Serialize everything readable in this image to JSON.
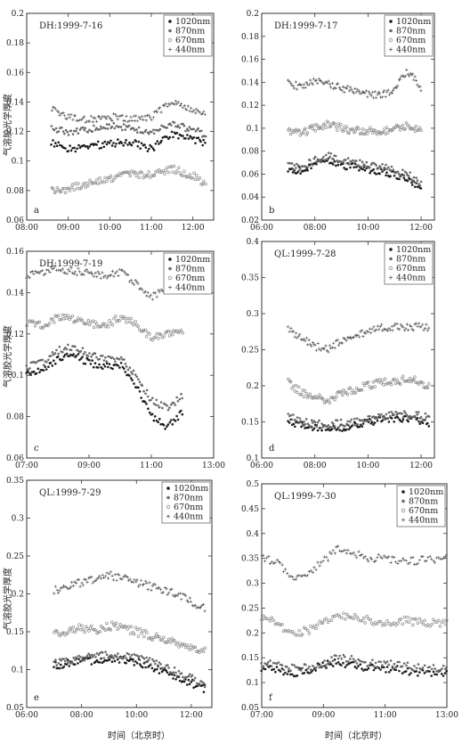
{
  "figure": {
    "ylabel": "气溶胶光学厚度",
    "xlabel": "时间（北京时）"
  },
  "chart_data": [
    {
      "type": "scatter",
      "label": "a",
      "title": "DH:1999-7-16",
      "xlim": [
        8.0,
        12.5
      ],
      "ylim": [
        0.06,
        0.2
      ],
      "xticks": [
        "08:00",
        "09:00",
        "10:00",
        "11:00",
        "12:00"
      ],
      "xtick_values": [
        8,
        9,
        10,
        11,
        12
      ],
      "yticks": [
        "0.06",
        "0.08",
        "0.1",
        "0.12",
        "0.14",
        "0.16",
        "0.18",
        "0.2"
      ],
      "ytick_values": [
        0.06,
        0.08,
        0.1,
        0.12,
        0.14,
        0.16,
        0.18,
        0.2
      ],
      "legend": [
        "1020nm",
        "870nm",
        "670nm",
        "440nm"
      ],
      "x_hours": [
        8.6,
        9.0,
        9.5,
        10.0,
        10.5,
        11.0,
        11.5,
        12.0,
        12.3
      ],
      "series": [
        {
          "name": "1020nm",
          "values": [
            0.112,
            0.108,
            0.11,
            0.112,
            0.113,
            0.108,
            0.118,
            0.115,
            0.112
          ]
        },
        {
          "name": "870nm",
          "values": [
            0.122,
            0.12,
            0.121,
            0.124,
            0.122,
            0.12,
            0.125,
            0.121,
            0.118
          ]
        },
        {
          "name": "670nm",
          "values": [
            0.08,
            0.081,
            0.085,
            0.088,
            0.092,
            0.09,
            0.095,
            0.09,
            0.085
          ]
        },
        {
          "name": "440nm",
          "values": [
            0.135,
            0.13,
            0.128,
            0.13,
            0.128,
            0.13,
            0.14,
            0.135,
            0.132
          ]
        }
      ]
    },
    {
      "type": "scatter",
      "label": "b",
      "title": "DH:1999-7-17",
      "xlim": [
        6.0,
        12.5
      ],
      "ylim": [
        0.02,
        0.2
      ],
      "xticks": [
        "06:00",
        "08:00",
        "10:00",
        "12:00"
      ],
      "xtick_values": [
        6,
        8,
        10,
        12
      ],
      "yticks": [
        "0.02",
        "0.04",
        "0.06",
        "0.08",
        "0.1",
        "0.12",
        "0.14",
        "0.16",
        "0.18",
        "0.2"
      ],
      "ytick_values": [
        0.02,
        0.04,
        0.06,
        0.08,
        0.1,
        0.12,
        0.14,
        0.16,
        0.18,
        0.2
      ],
      "legend": [
        "1020nm",
        "870nm",
        "670nm",
        "440nm"
      ],
      "x_hours": [
        7.0,
        7.5,
        8.0,
        8.5,
        9.0,
        9.5,
        10.0,
        10.5,
        11.0,
        11.5,
        12.0
      ],
      "series": [
        {
          "name": "1020nm",
          "values": [
            0.065,
            0.063,
            0.068,
            0.072,
            0.068,
            0.066,
            0.064,
            0.062,
            0.06,
            0.056,
            0.048
          ]
        },
        {
          "name": "870nm",
          "values": [
            0.068,
            0.066,
            0.072,
            0.076,
            0.072,
            0.07,
            0.068,
            0.066,
            0.064,
            0.06,
            0.052
          ]
        },
        {
          "name": "670nm",
          "values": [
            0.098,
            0.096,
            0.1,
            0.104,
            0.1,
            0.098,
            0.098,
            0.096,
            0.1,
            0.102,
            0.098
          ]
        },
        {
          "name": "440nm",
          "values": [
            0.14,
            0.135,
            0.142,
            0.138,
            0.135,
            0.132,
            0.13,
            0.128,
            0.135,
            0.15,
            0.135
          ]
        }
      ]
    },
    {
      "type": "scatter",
      "label": "c",
      "title": "DH:1999-7-19",
      "xlim": [
        7.0,
        13.0
      ],
      "ylim": [
        0.06,
        0.16
      ],
      "xticks": [
        "07:00",
        "09:00",
        "11:00",
        "13:00"
      ],
      "xtick_values": [
        7,
        9,
        11,
        13
      ],
      "yticks": [
        "0.06",
        "0.08",
        "0.1",
        "0.12",
        "0.14",
        "0.16"
      ],
      "ytick_values": [
        0.06,
        0.08,
        0.1,
        0.12,
        0.14,
        0.16
      ],
      "legend": [
        "1020nm",
        "870nm",
        "670nm",
        "440nm"
      ],
      "x_hours": [
        7.0,
        7.5,
        8.0,
        8.5,
        9.0,
        9.5,
        10.0,
        10.5,
        11.0,
        11.5,
        12.0
      ],
      "series": [
        {
          "name": "1020nm",
          "values": [
            0.1,
            0.102,
            0.108,
            0.11,
            0.106,
            0.104,
            0.105,
            0.095,
            0.08,
            0.075,
            0.082
          ]
        },
        {
          "name": "870nm",
          "values": [
            0.104,
            0.106,
            0.112,
            0.114,
            0.11,
            0.108,
            0.108,
            0.1,
            0.088,
            0.084,
            0.09
          ]
        },
        {
          "name": "670nm",
          "values": [
            0.125,
            0.124,
            0.128,
            0.127,
            0.125,
            0.124,
            0.128,
            0.125,
            0.118,
            0.12,
            0.12
          ]
        },
        {
          "name": "440nm",
          "values": [
            0.148,
            0.15,
            0.152,
            0.15,
            0.15,
            0.148,
            0.15,
            0.145,
            0.138,
            0.142,
            0.145
          ]
        }
      ]
    },
    {
      "type": "scatter",
      "label": "d",
      "title": "QL:1999-7-28",
      "xlim": [
        6.0,
        12.5
      ],
      "ylim": [
        0.1,
        0.4
      ],
      "xticks": [
        "06:00",
        "08:00",
        "10:00",
        "12:00"
      ],
      "xtick_values": [
        6,
        8,
        10,
        12
      ],
      "yticks": [
        "0.1",
        "0.15",
        "0.2",
        "0.25",
        "0.3",
        "0.35",
        "0.4"
      ],
      "ytick_values": [
        0.1,
        0.15,
        0.2,
        0.25,
        0.3,
        0.35,
        0.4
      ],
      "legend": [
        "1020nm",
        "870nm",
        "670nm",
        "440nm"
      ],
      "x_hours": [
        7.0,
        7.5,
        8.0,
        8.5,
        9.0,
        9.5,
        10.0,
        10.5,
        11.0,
        11.5,
        12.0,
        12.3
      ],
      "series": [
        {
          "name": "1020nm",
          "values": [
            0.15,
            0.145,
            0.142,
            0.14,
            0.142,
            0.145,
            0.15,
            0.152,
            0.155,
            0.155,
            0.15,
            0.148
          ]
        },
        {
          "name": "870nm",
          "values": [
            0.16,
            0.15,
            0.148,
            0.146,
            0.148,
            0.15,
            0.155,
            0.158,
            0.16,
            0.16,
            0.158,
            0.155
          ]
        },
        {
          "name": "670nm",
          "values": [
            0.205,
            0.19,
            0.185,
            0.18,
            0.19,
            0.195,
            0.2,
            0.205,
            0.205,
            0.21,
            0.205,
            0.2
          ]
        },
        {
          "name": "440nm",
          "values": [
            0.28,
            0.265,
            0.255,
            0.25,
            0.262,
            0.27,
            0.275,
            0.28,
            0.282,
            0.28,
            0.282,
            0.28
          ]
        }
      ]
    },
    {
      "type": "scatter",
      "label": "e",
      "title": "QL:1999-7-29",
      "xlim": [
        6.0,
        12.75
      ],
      "ylim": [
        0.05,
        0.35
      ],
      "xticks": [
        "06:00",
        "08:00",
        "10:00",
        "12:00"
      ],
      "xtick_values": [
        6,
        8,
        10,
        12
      ],
      "yticks": [
        "0.05",
        "0.1",
        "0.15",
        "0.2",
        "0.25",
        "0.3",
        "0.35"
      ],
      "ytick_values": [
        0.05,
        0.1,
        0.15,
        0.2,
        0.25,
        0.3,
        0.35
      ],
      "legend": [
        "1020nm",
        "870nm",
        "670nm",
        "440nm"
      ],
      "x_hours": [
        7.0,
        7.5,
        8.0,
        8.5,
        9.0,
        9.5,
        10.0,
        10.5,
        11.0,
        11.5,
        12.0,
        12.5
      ],
      "series": [
        {
          "name": "1020nm",
          "values": [
            0.105,
            0.108,
            0.11,
            0.112,
            0.115,
            0.112,
            0.11,
            0.105,
            0.098,
            0.09,
            0.082,
            0.075
          ]
        },
        {
          "name": "870nm",
          "values": [
            0.11,
            0.112,
            0.115,
            0.118,
            0.12,
            0.118,
            0.115,
            0.11,
            0.104,
            0.096,
            0.088,
            0.08
          ]
        },
        {
          "name": "670nm",
          "values": [
            0.148,
            0.15,
            0.155,
            0.152,
            0.158,
            0.155,
            0.15,
            0.145,
            0.14,
            0.135,
            0.13,
            0.125
          ]
        },
        {
          "name": "440nm",
          "values": [
            0.205,
            0.21,
            0.215,
            0.22,
            0.225,
            0.22,
            0.215,
            0.21,
            0.205,
            0.2,
            0.19,
            0.18
          ]
        }
      ]
    },
    {
      "type": "scatter",
      "label": "f",
      "title": "QL:1999-7-30",
      "xlim": [
        7.0,
        13.0
      ],
      "ylim": [
        0.05,
        0.5
      ],
      "xticks": [
        "07:00",
        "09:00",
        "11:00",
        "13:00"
      ],
      "xtick_values": [
        7,
        9,
        11,
        13
      ],
      "yticks": [
        "0.05",
        "0.1",
        "0.15",
        "0.2",
        "0.25",
        "0.3",
        "0.35",
        "0.4",
        "0.45",
        "0.5"
      ],
      "ytick_values": [
        0.05,
        0.1,
        0.15,
        0.2,
        0.25,
        0.3,
        0.35,
        0.4,
        0.45,
        0.5
      ],
      "legend": [
        "1020nm",
        "870nm",
        "670nm",
        "440nm"
      ],
      "x_hours": [
        7.0,
        7.5,
        8.0,
        8.5,
        9.0,
        9.5,
        10.0,
        10.5,
        11.0,
        11.5,
        12.0,
        12.5,
        13.0
      ],
      "series": [
        {
          "name": "1020nm",
          "values": [
            0.13,
            0.125,
            0.12,
            0.125,
            0.135,
            0.14,
            0.135,
            0.13,
            0.128,
            0.125,
            0.122,
            0.12,
            0.118
          ]
        },
        {
          "name": "870nm",
          "values": [
            0.14,
            0.135,
            0.13,
            0.132,
            0.14,
            0.15,
            0.145,
            0.14,
            0.138,
            0.135,
            0.132,
            0.13,
            0.128
          ]
        },
        {
          "name": "670nm",
          "values": [
            0.23,
            0.22,
            0.2,
            0.205,
            0.22,
            0.235,
            0.23,
            0.225,
            0.22,
            0.225,
            0.222,
            0.22,
            0.218
          ]
        },
        {
          "name": "440nm",
          "values": [
            0.355,
            0.34,
            0.31,
            0.32,
            0.345,
            0.37,
            0.36,
            0.35,
            0.35,
            0.345,
            0.345,
            0.348,
            0.35
          ]
        }
      ]
    }
  ]
}
